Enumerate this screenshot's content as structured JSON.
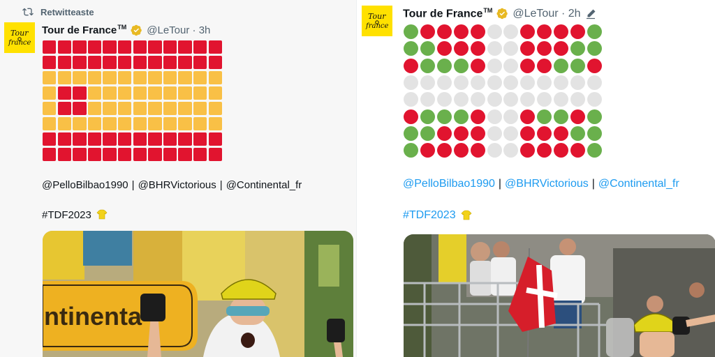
{
  "left_tweet": {
    "retweet_label": "Retwitteaste",
    "author_name": "Tour de France",
    "trademark": "TM",
    "handle": "@LeTour",
    "time": "3h",
    "grid_colors": {
      "red": "#e1142f",
      "yellow": "#f9c046"
    },
    "grid_rows": [
      "rrrrrrrrrrrr",
      "rrrrrrrrrrrr",
      "yyyyyyyyyyyy",
      "yrryyyyyyyyy",
      "yrryyyyyyyyy",
      "yyyyyyyyyyyy",
      "rrrrrrrrrrrr",
      "rrrrrrrrrrrr"
    ],
    "mentions": [
      "@PelloBilbao1990",
      "@BHRVictorious",
      "@Continental_fr"
    ],
    "separator": "|",
    "hashtag": "#TDF2023",
    "media_banner_text": "ntinenta"
  },
  "right_tweet": {
    "author_name": "Tour de France",
    "trademark": "TM",
    "handle": "@LeTour",
    "time": "2h",
    "grid_colors": {
      "red": "#e1142f",
      "green": "#6ab04c",
      "gray": "#e3e3e3"
    },
    "grid_rows": [
      "grrrrggrrrrg",
      "ggrrrggrrrgg",
      "rgggrggrrggr",
      "gggggggggggg",
      "gggggggggggg",
      "rgggrggrggrg",
      "ggrrrggrrrgg",
      "grrrrggrrrrg"
    ],
    "mentions": [
      "@PelloBilbao1990",
      "@BHRVictorious",
      "@Continental_fr"
    ],
    "separator": "|",
    "hashtag": "#TDF2023"
  },
  "icons": {
    "retweet": "retweet-icon",
    "verified": "verified-badge-icon",
    "edit": "edited-pencil-icon",
    "hashtag_emoji": "yellow-jersey-emoji-icon",
    "avatar": "tour-de-france-logo"
  },
  "colors": {
    "link": "#1d9bf0",
    "brand_yellow": "#ffe100",
    "verified_gold": "#e8b923"
  }
}
